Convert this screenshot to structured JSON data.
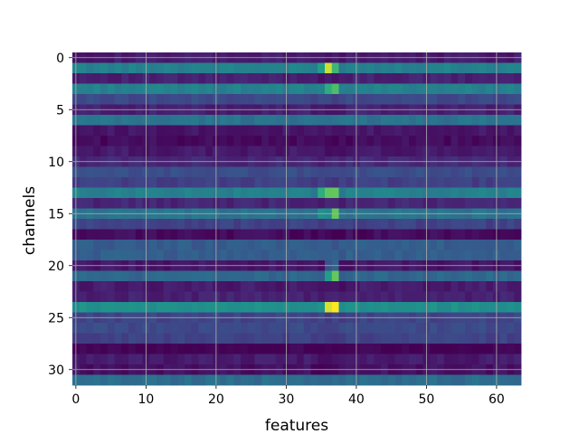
{
  "chart_data": {
    "type": "heatmap",
    "xlabel": "features",
    "ylabel": "channels",
    "n_cols": 64,
    "n_rows": 32,
    "xlim": [
      -0.5,
      63.5
    ],
    "ylim": [
      31.5,
      -0.5
    ],
    "x_ticks": [
      0,
      10,
      20,
      30,
      40,
      50,
      60
    ],
    "y_ticks": [
      0,
      5,
      10,
      15,
      20,
      25,
      30
    ],
    "colormap": "viridis",
    "grid": true,
    "value_range": [
      0,
      1
    ],
    "row_levels": [
      0.1,
      0.55,
      0.12,
      0.55,
      0.28,
      0.12,
      0.48,
      0.08,
      0.04,
      0.09,
      0.15,
      0.3,
      0.24,
      0.55,
      0.14,
      0.48,
      0.25,
      0.04,
      0.37,
      0.38,
      0.08,
      0.42,
      0.1,
      0.12,
      0.63,
      0.26,
      0.28,
      0.25,
      0.0,
      0.1,
      0.06,
      0.45
    ],
    "hot_columns": [
      {
        "col": 35,
        "row_deltas": [
          [
            1,
            0.18
          ],
          [
            13,
            0.25
          ],
          [
            15,
            0.15
          ]
        ]
      },
      {
        "col": 36,
        "row_deltas": [
          [
            1,
            0.4
          ],
          [
            3,
            0.2
          ],
          [
            13,
            0.3
          ],
          [
            20,
            0.25
          ],
          [
            21,
            0.3
          ],
          [
            24,
            0.33
          ],
          [
            15,
            0.18
          ]
        ]
      },
      {
        "col": 37,
        "row_deltas": [
          [
            1,
            0.3
          ],
          [
            13,
            0.33
          ],
          [
            15,
            0.4
          ],
          [
            20,
            0.3
          ],
          [
            21,
            0.42
          ],
          [
            24,
            0.4
          ],
          [
            3,
            0.25
          ]
        ]
      }
    ]
  }
}
